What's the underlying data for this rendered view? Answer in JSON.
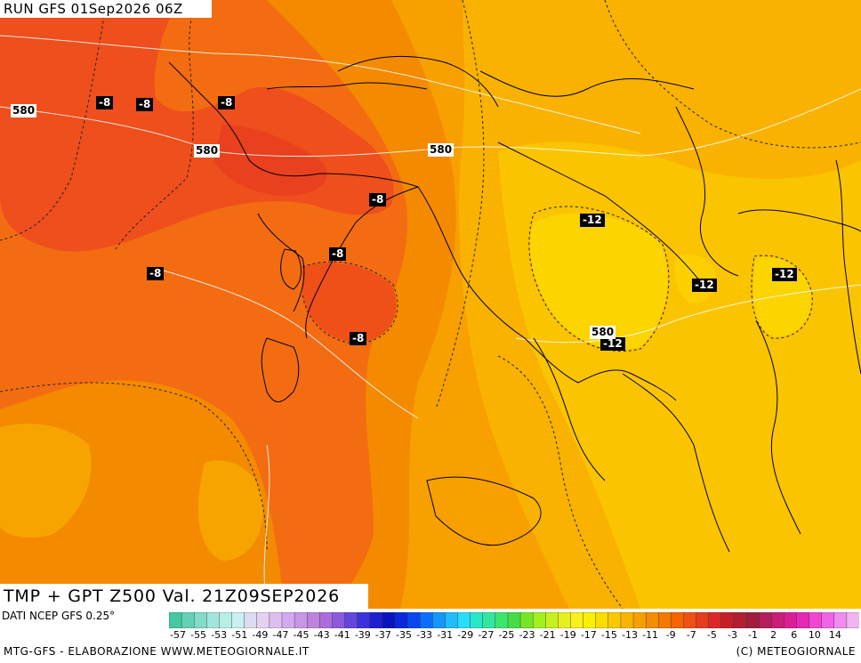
{
  "header": {
    "run": "RUN GFS 01Sep2026 06Z"
  },
  "footer": {
    "validity": "TMP + GPT Z500 Val. 21Z09SEP2026",
    "source": "DATI NCEP GFS 0.25°",
    "credit_left": "MTG-GFS - ELABORAZIONE WWW.METEOGIORNALE.IT",
    "credit_right": "(C) METEOGIORNALE"
  },
  "temp_labels": [
    "-8",
    "-8",
    "-8",
    "-8",
    "-8",
    "-8",
    "-8",
    "-12",
    "-12",
    "-12",
    "-12"
  ],
  "gpt_labels": [
    "580",
    "580",
    "580",
    "580"
  ],
  "scale": {
    "labels": [
      "-57",
      "-55",
      "-53",
      "-51",
      "-49",
      "-47",
      "-45",
      "-43",
      "-41",
      "-39",
      "-37",
      "-35",
      "-33",
      "-31",
      "-29",
      "-27",
      "-25",
      "-23",
      "-21",
      "-19",
      "-17",
      "-15",
      "-13",
      "-11",
      "-9",
      "-7",
      "-5",
      "-3",
      "-1",
      "2",
      "6",
      "10",
      "14"
    ],
    "colors": [
      "#46c8a0",
      "#64d2b4",
      "#82dcc8",
      "#a0e6dc",
      "#b4f0e6",
      "#c8f0f0",
      "#dcdcf0",
      "#e6d2f0",
      "#dcbef0",
      "#d2aaf0",
      "#c896e6",
      "#be82dc",
      "#aa6edc",
      "#8c5adc",
      "#6446dc",
      "#3c32dc",
      "#1e1ed2",
      "#0a14be",
      "#0a28dc",
      "#0a46f0",
      "#0a6efa",
      "#1496fa",
      "#1ebefa",
      "#28dcfa",
      "#28e6c8",
      "#32e6a0",
      "#3ce66e",
      "#46dc46",
      "#78e628",
      "#a0f01e",
      "#c8f01e",
      "#e6f01e",
      "#faf01e",
      "#faf000",
      "#fadc00",
      "#fac800",
      "#fab400",
      "#f5a000",
      "#f58c00",
      "#f57800",
      "#f56400",
      "#f05014",
      "#e63c1e",
      "#dc2828",
      "#c81e28",
      "#b41e32",
      "#a01e3c",
      "#b41e5a",
      "#c81e78",
      "#dc1e96",
      "#e628b4",
      "#f046d2",
      "#f064e6",
      "#f08cf0",
      "#f0b4f0"
    ]
  },
  "map_colors": {
    "deep_orange": "#f26a1a",
    "red_orange": "#ee4c1e",
    "orange": "#f58c00",
    "light_orange": "#f7a300",
    "amber": "#fab400",
    "yellow": "#fbcb00",
    "bright_yellow": "#fcd700",
    "land_border": "#000000"
  }
}
